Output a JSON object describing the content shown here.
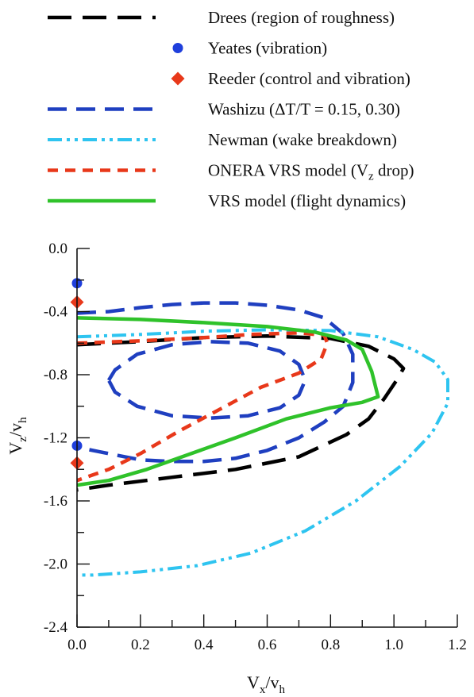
{
  "chart_data": {
    "type": "line",
    "x_axis": {
      "label_main": "V",
      "label_sub1": "x",
      "label_slash": "/v",
      "label_sub2": "h",
      "range": [
        0.0,
        1.2
      ],
      "ticks": [
        "0.0",
        "0.2",
        "0.4",
        "0.6",
        "0.8",
        "1.0",
        "1.2"
      ],
      "tick_values": [
        0.0,
        0.2,
        0.4,
        0.6,
        0.8,
        1.0,
        1.2
      ]
    },
    "y_axis": {
      "label_main": "V",
      "label_sub1": "z",
      "label_slash": "/v",
      "label_sub2": "h",
      "range": [
        -2.4,
        0.0
      ],
      "ticks": [
        "0.0",
        "-0.4",
        "-0.8",
        "-1.2",
        "-1.6",
        "-2.0",
        "-2.4"
      ],
      "tick_values": [
        0.0,
        -0.4,
        -0.8,
        -1.2,
        -1.6,
        -2.0,
        -2.4
      ]
    },
    "grid": false,
    "legend_position": "top",
    "legend": [
      {
        "text": "Drees (region of roughness)",
        "color": "#000000",
        "style": "long-dash",
        "series": "drees"
      },
      {
        "text": "Yeates (vibration)",
        "color": "#1f3fdc",
        "style": "circle-marker",
        "series": "yeates"
      },
      {
        "text": "Reeder (control and vibration)",
        "color": "#e8381a",
        "style": "diamond-marker",
        "series": "reeder"
      },
      {
        "text": "Washizu (ΔT/T = 0.15, 0.30)",
        "color": "#1f3fc0",
        "style": "dash",
        "series": "washizu"
      },
      {
        "text": "Newman (wake breakdown)",
        "color": "#2ec4f0",
        "style": "dash-dot-dot",
        "series": "newman"
      },
      {
        "text_main": "ONERA VRS model (V",
        "text_sub": "z",
        "text_end": " drop)",
        "color": "#e8381a",
        "style": "short-dash",
        "series": "onera"
      },
      {
        "text": "VRS model (flight dynamics)",
        "color": "#2fc22a",
        "style": "solid",
        "series": "vrs"
      }
    ],
    "series": [
      {
        "id": "drees",
        "color": "#000000",
        "style": "long-dash",
        "points": [
          [
            0.0,
            -0.61
          ],
          [
            0.2,
            -0.59
          ],
          [
            0.4,
            -0.565
          ],
          [
            0.6,
            -0.555
          ],
          [
            0.8,
            -0.57
          ],
          [
            0.92,
            -0.62
          ],
          [
            1.0,
            -0.7
          ],
          [
            1.03,
            -0.76
          ],
          [
            1.01,
            -0.83
          ],
          [
            0.97,
            -0.95
          ],
          [
            0.92,
            -1.08
          ],
          [
            0.85,
            -1.18
          ],
          [
            0.7,
            -1.32
          ],
          [
            0.5,
            -1.4
          ],
          [
            0.3,
            -1.45
          ],
          [
            0.1,
            -1.5
          ],
          [
            0.0,
            -1.53
          ]
        ]
      },
      {
        "id": "yeates",
        "color": "#1f3fdc",
        "style": "marker",
        "points": [
          [
            0.0,
            -0.22
          ],
          [
            0.0,
            -1.25
          ]
        ]
      },
      {
        "id": "reeder",
        "color": "#e8381a",
        "style": "marker",
        "points": [
          [
            0.0,
            -0.34
          ],
          [
            0.0,
            -1.36
          ]
        ]
      },
      {
        "id": "washizu_outer",
        "color": "#1f3fc0",
        "style": "dash",
        "points": [
          [
            0.0,
            -0.41
          ],
          [
            0.1,
            -0.4
          ],
          [
            0.2,
            -0.375
          ],
          [
            0.3,
            -0.355
          ],
          [
            0.4,
            -0.345
          ],
          [
            0.5,
            -0.345
          ],
          [
            0.6,
            -0.36
          ],
          [
            0.7,
            -0.39
          ],
          [
            0.78,
            -0.44
          ],
          [
            0.84,
            -0.54
          ],
          [
            0.87,
            -0.67
          ],
          [
            0.87,
            -0.85
          ],
          [
            0.84,
            -1.0
          ],
          [
            0.78,
            -1.1
          ],
          [
            0.7,
            -1.2
          ],
          [
            0.6,
            -1.28
          ],
          [
            0.5,
            -1.33
          ],
          [
            0.4,
            -1.35
          ],
          [
            0.3,
            -1.35
          ],
          [
            0.2,
            -1.34
          ],
          [
            0.1,
            -1.3
          ],
          [
            0.0,
            -1.26
          ]
        ]
      },
      {
        "id": "washizu_inner",
        "color": "#1f3fc0",
        "style": "dash",
        "closed": true,
        "points": [
          [
            0.1,
            -0.835
          ],
          [
            0.12,
            -0.77
          ],
          [
            0.19,
            -0.67
          ],
          [
            0.3,
            -0.61
          ],
          [
            0.42,
            -0.59
          ],
          [
            0.54,
            -0.6
          ],
          [
            0.64,
            -0.65
          ],
          [
            0.7,
            -0.735
          ],
          [
            0.72,
            -0.835
          ],
          [
            0.7,
            -0.93
          ],
          [
            0.64,
            -1.01
          ],
          [
            0.54,
            -1.06
          ],
          [
            0.42,
            -1.075
          ],
          [
            0.3,
            -1.06
          ],
          [
            0.19,
            -1.0
          ],
          [
            0.12,
            -0.91
          ]
        ]
      },
      {
        "id": "newman",
        "color": "#2ec4f0",
        "style": "dash-dot-dot",
        "points": [
          [
            0.0,
            -0.56
          ],
          [
            0.2,
            -0.545
          ],
          [
            0.4,
            -0.525
          ],
          [
            0.6,
            -0.515
          ],
          [
            0.8,
            -0.52
          ],
          [
            0.95,
            -0.56
          ],
          [
            1.06,
            -0.64
          ],
          [
            1.13,
            -0.72
          ],
          [
            1.17,
            -0.83
          ],
          [
            1.17,
            -0.98
          ],
          [
            1.12,
            -1.17
          ],
          [
            1.02,
            -1.38
          ],
          [
            0.88,
            -1.6
          ],
          [
            0.72,
            -1.79
          ],
          [
            0.55,
            -1.93
          ],
          [
            0.38,
            -2.01
          ],
          [
            0.2,
            -2.05
          ],
          [
            0.05,
            -2.07
          ],
          [
            0.0,
            -2.07
          ]
        ]
      },
      {
        "id": "onera",
        "color": "#e8381a",
        "style": "short-dash",
        "points": [
          [
            0.0,
            -0.6
          ],
          [
            0.2,
            -0.585
          ],
          [
            0.4,
            -0.565
          ],
          [
            0.55,
            -0.545
          ],
          [
            0.7,
            -0.535
          ],
          [
            0.78,
            -0.55
          ],
          [
            0.79,
            -0.6
          ],
          [
            0.77,
            -0.7
          ],
          [
            0.7,
            -0.79
          ],
          [
            0.58,
            -0.88
          ],
          [
            0.45,
            -1.02
          ],
          [
            0.32,
            -1.16
          ],
          [
            0.2,
            -1.3
          ],
          [
            0.1,
            -1.4
          ],
          [
            0.0,
            -1.47
          ]
        ]
      },
      {
        "id": "vrs",
        "color": "#2fc22a",
        "style": "solid",
        "points": [
          [
            0.0,
            -0.44
          ],
          [
            0.2,
            -0.45
          ],
          [
            0.4,
            -0.47
          ],
          [
            0.6,
            -0.495
          ],
          [
            0.75,
            -0.53
          ],
          [
            0.85,
            -0.58
          ],
          [
            0.9,
            -0.64
          ],
          [
            0.93,
            -0.78
          ],
          [
            0.95,
            -0.94
          ],
          [
            0.9,
            -0.975
          ],
          [
            0.8,
            -1.01
          ],
          [
            0.66,
            -1.08
          ],
          [
            0.5,
            -1.2
          ],
          [
            0.36,
            -1.3
          ],
          [
            0.22,
            -1.4
          ],
          [
            0.1,
            -1.47
          ],
          [
            0.0,
            -1.5
          ]
        ]
      }
    ]
  }
}
